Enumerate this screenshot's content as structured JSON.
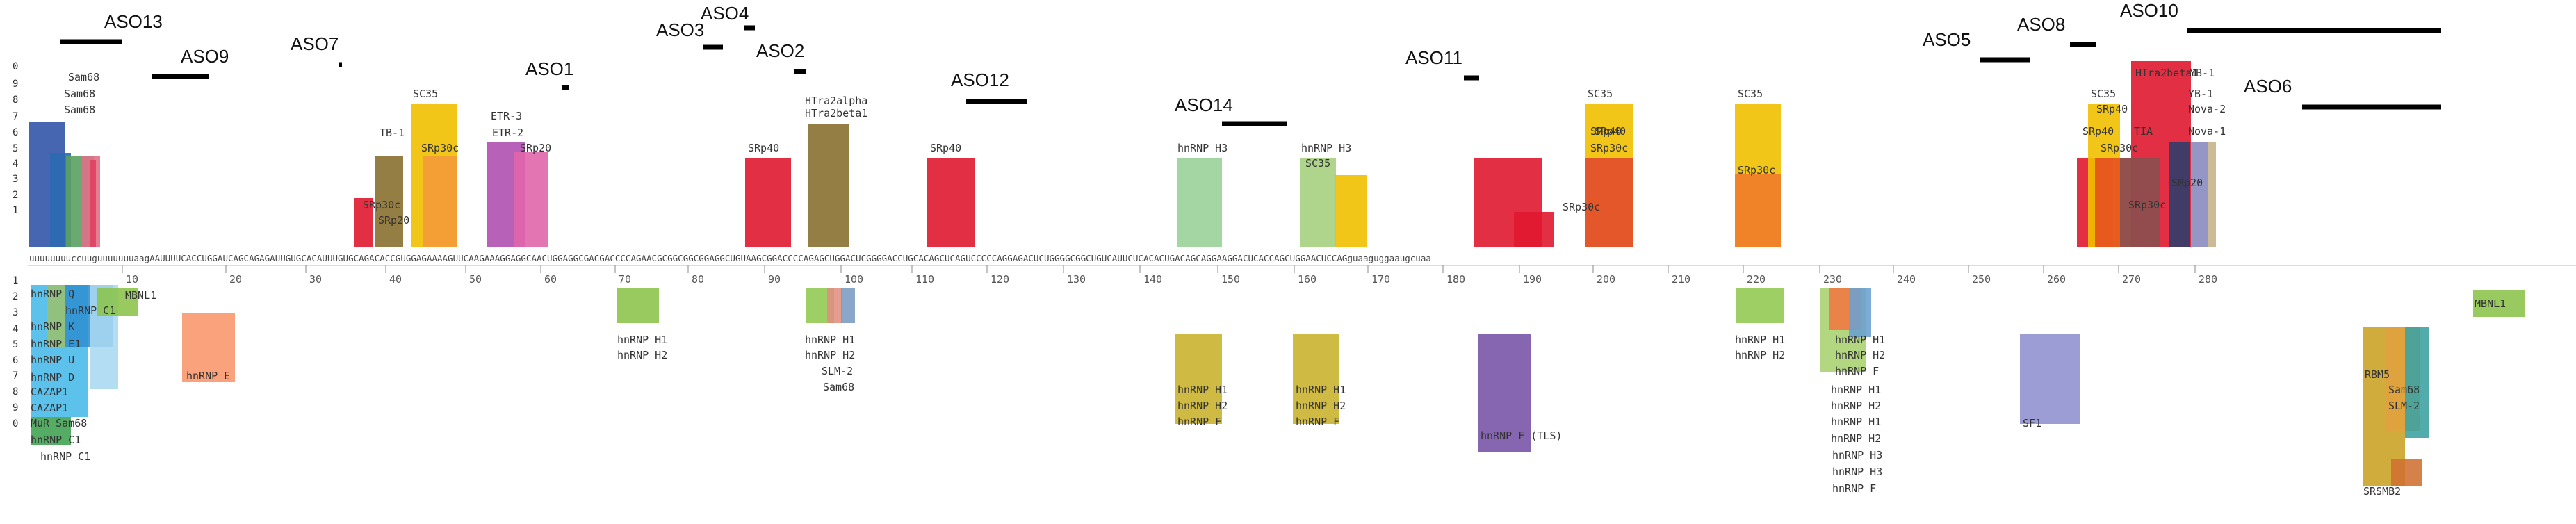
{
  "aso": [
    {
      "name": "ASO13"
    },
    {
      "name": "ASO9"
    },
    {
      "name": "ASO7"
    },
    {
      "name": "ASO1"
    },
    {
      "name": "ASO4"
    },
    {
      "name": "ASO3"
    },
    {
      "name": "ASO2"
    },
    {
      "name": "ASO12"
    },
    {
      "name": "ASO14"
    },
    {
      "name": "ASO11"
    },
    {
      "name": "ASO5"
    },
    {
      "name": "ASO8"
    },
    {
      "name": "ASO10"
    },
    {
      "name": "ASO6"
    }
  ],
  "row_numbers": [
    "0",
    "9",
    "8",
    "7",
    "6",
    "5",
    "4",
    "3",
    "2",
    "1",
    "1",
    "2",
    "3",
    "4",
    "5",
    "6",
    "7",
    "8",
    "9",
    "0"
  ],
  "sequence": "uuuuuuuuccuuguuuuuuuaagAAUUUUCACCUGGAUCAGCAGAGAUUGUGCACAUUUGUGCAGACACCGUGGAGAAAAGUUCAAGAAAGGAGGCAACUGGAGGCGACGACCCCAGAACGCGGCGGCGGAGGCUGUAAGCGGACCCCAGAGCUGGACUCGGGGACCUGCACAGCUCAGUCCCCCAGGAGACUCUGGGGCGGCUGUCAUUCUCACACUGACAGCAGGAAGGACUCACCAGCUGGAACUCCAGguaaguggaaugcuaa",
  "ticks": [
    "10",
    "20",
    "30",
    "40",
    "50",
    "60",
    "70",
    "80",
    "90",
    "100",
    "110",
    "120",
    "130",
    "140",
    "150",
    "160",
    "170",
    "180",
    "190",
    "200",
    "210",
    "220",
    "230",
    "240",
    "250",
    "260",
    "270",
    "280"
  ],
  "proteins_above": [
    "Sam68",
    "Sam68",
    "Sam68",
    "SC35",
    "TB-1",
    "SRp30c",
    "SRp30c",
    "SRp20",
    "ETR-3",
    "ETR-2",
    "SRp20",
    "SRp40",
    "HTra2alpha",
    "HTra2beta1",
    "SRp40",
    "hnRNP H3",
    "hnRNP H3",
    "SC35",
    "SC35",
    "SRp40",
    "SRp30c",
    "SRp40",
    "SRp30c",
    "SC35",
    "SRp30c",
    "HTra2beta1",
    "YB-1",
    "SC35",
    "SRp40",
    "SRp40",
    "TIA",
    "SRp30c",
    "YB-1",
    "Nova-2",
    "Nova-1",
    "SRp30c",
    "SRp20"
  ],
  "proteins_below": [
    "hnRNP Q",
    "hnRNP C1",
    "hnRNP K",
    "hnRNP E1",
    "hnRNP U",
    "hnRNP D",
    "CAZAP1",
    "CAZAP1",
    "MuR Sam68",
    "hnRNP C1",
    "hnRNP C1",
    "MBNL1",
    "hnRNP E",
    "hnRNP H1",
    "hnRNP H2",
    "hnRNP H1",
    "hnRNP H2",
    "SLM-2",
    "Sam68",
    "hnRNP H1",
    "hnRNP H2",
    "hnRNP F",
    "hnRNP H1",
    "hnRNP H2",
    "hnRNP F",
    "hnRNP F (TLS)",
    "hnRNP H1",
    "hnRNP H2",
    "hnRNP H1",
    "hnRNP H2",
    "hnRNP F",
    "hnRNP H1",
    "hnRNP H2",
    "hnRNP H1",
    "hnRNP H2",
    "hnRNP H3",
    "hnRNP H3",
    "hnRNP F",
    "SF1",
    "RBM5",
    "Sam68",
    "SLM-2",
    "SRSMB2",
    "MBNL1"
  ]
}
